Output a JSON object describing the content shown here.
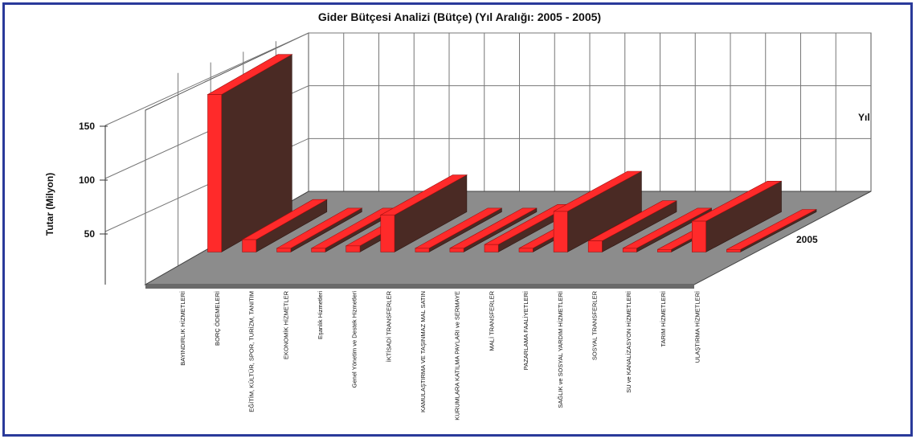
{
  "chart_data": {
    "type": "bar",
    "style": "3d",
    "title": "Gider Bütçesi Analizi (Bütçe) (Yıl Aralığı: 2005 - 2005)",
    "ylabel": "Tutar (Milyon)",
    "zlabel": "Yıl",
    "ylim": [
      0,
      150
    ],
    "yticks": [
      50,
      100,
      150
    ],
    "grid": true,
    "categories": [
      "BAYINDIRLIK HİZMETLERİ",
      "BORÇ ÖDEMELERİ",
      "EĞİTİM, KÜLTÜR, SPOR, TURİZM, TANITIM",
      "EKONOMİK HİZMETLER",
      "Eşanlık Hizmetleri",
      "Genel Yönetim ve Destek Hizmetleri",
      "İKTİSADİ TRANSFERLER",
      "KAMULAŞTIRMA VE TAŞINMAZ MAL SATIN",
      "KURUMLARA KATILMA PAYLARI ve SERMAYE",
      "MALİ TRANSFERLER",
      "PAZARLAMA FAALİYETLERİ",
      "SAĞLIK ve SOSYAL YARDIM HİZMETLERİ",
      "SOSYAL TRANSFERLER",
      "SU ve KANALİZASYON HİZMETLERİ",
      "TARIM HİZMETLERİ",
      "ULAŞTIRMA HİZMETLERİ"
    ],
    "series": [
      {
        "name": "2005",
        "values": [
          128,
          10,
          3,
          3,
          5,
          30,
          3,
          3,
          6,
          3,
          33,
          9,
          3,
          2,
          25,
          2
        ]
      }
    ],
    "colors": {
      "top": "#ff2a2a",
      "front": "#ff2a2a",
      "side": "#4a2a24",
      "floor": "#8c8c8c"
    }
  }
}
